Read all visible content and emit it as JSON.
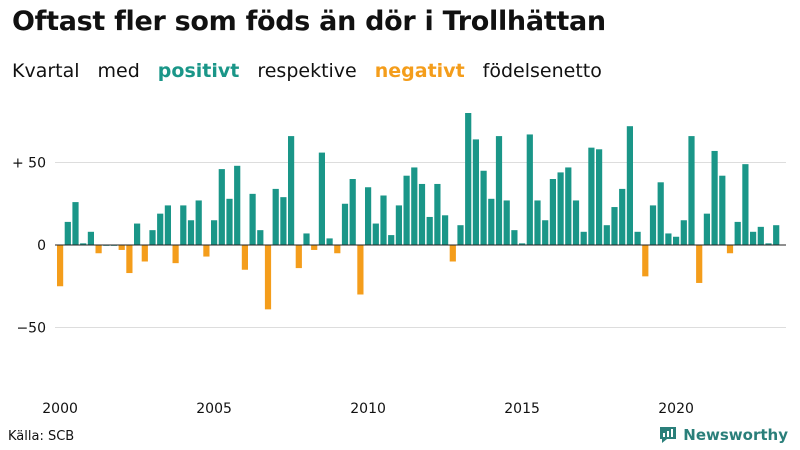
{
  "title": "Oftast fler som föds än dör i Trollhättan",
  "subtitle": {
    "prefix_1": "Kvartal",
    "prefix_2": "med",
    "positive": "positivt",
    "middle": "respektive",
    "negative": "negativt",
    "suffix": "födelsenetto"
  },
  "colors": {
    "positive": "#1a9688",
    "negative": "#f49d1b",
    "grid": "#dddddd",
    "brand": "#2a7f7a"
  },
  "source": "Källa: SCB",
  "brand": {
    "name": "Newsworthy",
    "icon": "newsworthy-logo-icon"
  },
  "chart_data": {
    "type": "bar",
    "x_start": "2000 Q1",
    "x_ticks": [
      "2000",
      "2005",
      "2010",
      "2015",
      "2020"
    ],
    "y_ticks": [
      {
        "value": 50,
        "label": "+ 50"
      },
      {
        "value": 0,
        "label": "0"
      },
      {
        "value": -50,
        "label": "−50"
      }
    ],
    "ylim": [
      -90,
      82
    ],
    "grid": true,
    "values": [
      -25,
      14,
      26,
      1,
      8,
      -5,
      0,
      0,
      -3,
      -17,
      13,
      -10,
      9,
      19,
      24,
      -11,
      24,
      15,
      27,
      -7,
      15,
      46,
      28,
      48,
      -15,
      31,
      9,
      -39,
      34,
      29,
      66,
      -14,
      7,
      -3,
      56,
      4,
      -5,
      25,
      40,
      -30,
      35,
      13,
      30,
      6,
      24,
      42,
      47,
      37,
      17,
      37,
      18,
      -10,
      12,
      80,
      64,
      45,
      28,
      66,
      27,
      9,
      1,
      67,
      27,
      15,
      40,
      44,
      47,
      27,
      8,
      59,
      58,
      12,
      23,
      34,
      72,
      8,
      -19,
      24,
      38,
      7,
      5,
      15,
      66,
      -23,
      19,
      57,
      42,
      -5,
      14,
      49,
      8,
      11,
      1,
      12
    ]
  }
}
